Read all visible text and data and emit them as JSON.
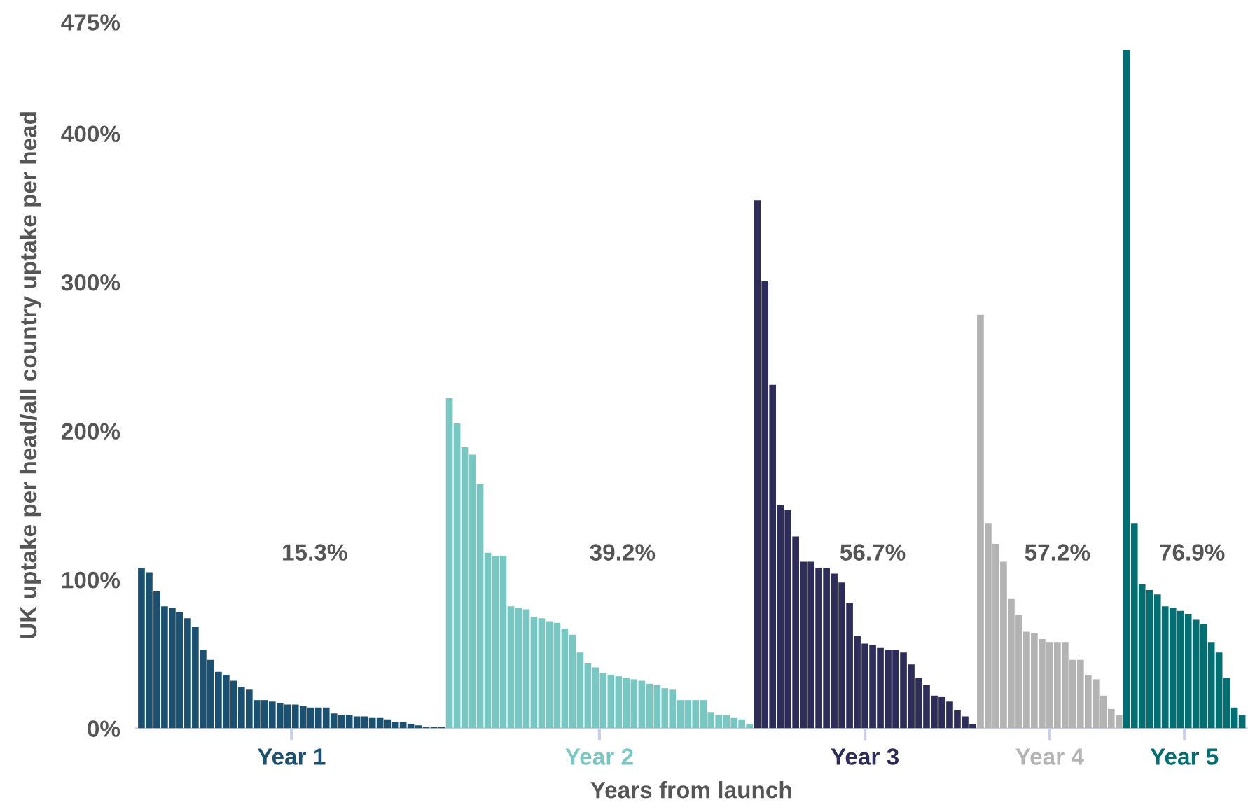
{
  "chart_data": {
    "type": "bar",
    "xlabel": "Years from launch",
    "ylabel": "UK uptake per head/all country uptake per head",
    "categories": [
      null,
      null,
      null,
      null,
      null,
      null,
      null,
      null,
      null,
      null,
      null,
      null,
      null,
      null,
      null,
      null,
      null,
      null,
      null,
      null,
      null,
      null,
      null,
      null,
      null,
      null,
      null,
      null,
      null,
      null,
      null,
      null,
      null,
      null,
      null,
      null,
      null,
      null,
      null,
      null,
      null,
      null,
      null,
      null,
      null,
      null,
      null,
      null,
      null,
      null,
      null,
      null,
      null,
      null,
      null,
      null,
      null,
      null,
      null,
      null,
      null,
      null,
      null,
      null,
      null,
      null,
      null,
      null,
      null,
      null,
      null,
      null,
      null,
      null,
      null,
      null,
      null,
      null,
      null,
      null,
      null,
      null,
      null,
      null,
      null,
      null,
      null,
      null,
      null,
      null,
      null,
      null,
      null,
      null,
      null,
      null,
      null,
      null,
      null,
      null,
      null,
      null,
      null,
      null,
      null,
      null,
      null,
      null,
      null,
      null,
      null,
      null,
      null,
      null,
      null,
      null,
      null,
      null,
      null,
      null,
      null,
      null,
      null,
      null,
      null,
      null,
      null,
      null,
      null,
      null,
      null,
      null,
      null,
      null,
      null,
      null,
      null,
      null,
      null,
      null,
      null,
      null,
      null,
      null
    ],
    "series": [
      {
        "name": "Year 1",
        "color": "#1b5070",
        "values": [
          108,
          105,
          92,
          82,
          81,
          78,
          74,
          68,
          53,
          46,
          38,
          36,
          32,
          28,
          26,
          19,
          19,
          18,
          17,
          16,
          16,
          15,
          14,
          14,
          14,
          10,
          9,
          9,
          8,
          8,
          7,
          7,
          6,
          4,
          4,
          3,
          2,
          1,
          1,
          1,
          null,
          null,
          null,
          null,
          null,
          null,
          null,
          null,
          null,
          null,
          null,
          null,
          null,
          null,
          null,
          null,
          null,
          null,
          null,
          null,
          null,
          null,
          null,
          null,
          null,
          null,
          null,
          null,
          null,
          null,
          null,
          null,
          null,
          null,
          null,
          null,
          null,
          null,
          null,
          null,
          null,
          null,
          null,
          null,
          null,
          null,
          null,
          null,
          null,
          null,
          null,
          null,
          null,
          null,
          null,
          null,
          null,
          null,
          null,
          null,
          null,
          null,
          null,
          null,
          null,
          null,
          null,
          null,
          null,
          null,
          null,
          null,
          null,
          null,
          null,
          null,
          null,
          null,
          null,
          null,
          null,
          null,
          null,
          null,
          null,
          null,
          null,
          null,
          null,
          null,
          null,
          null,
          null,
          null,
          null,
          null,
          null,
          null,
          null,
          null,
          null,
          null,
          null,
          null
        ]
      },
      {
        "name": "Year 2",
        "color": "#79c7c3",
        "values": [
          null,
          null,
          null,
          null,
          null,
          null,
          null,
          null,
          null,
          null,
          null,
          null,
          null,
          null,
          null,
          null,
          null,
          null,
          null,
          null,
          null,
          null,
          null,
          null,
          null,
          null,
          null,
          null,
          null,
          null,
          null,
          null,
          null,
          null,
          null,
          null,
          null,
          null,
          null,
          null,
          222,
          205,
          189,
          184,
          164,
          118,
          116,
          116,
          82,
          81,
          80,
          75,
          74,
          72,
          71,
          67,
          63,
          51,
          44,
          41,
          37,
          36,
          35,
          34,
          33,
          32,
          30,
          29,
          27,
          26,
          19,
          19,
          19,
          19,
          11,
          9,
          9,
          7,
          6,
          3,
          null,
          null,
          null,
          null,
          null,
          null,
          null,
          null,
          null,
          null,
          null,
          null,
          null,
          null,
          null,
          null,
          null,
          null,
          null,
          null,
          null,
          null,
          null,
          null,
          null,
          null,
          null,
          null,
          null,
          null,
          null,
          null,
          null,
          null,
          null,
          null,
          null,
          null,
          null,
          null,
          null,
          null,
          null,
          null,
          null,
          null,
          null,
          null,
          null,
          null,
          null,
          null,
          null,
          null,
          null,
          null,
          null,
          null,
          null,
          null,
          null,
          null,
          null,
          null
        ]
      },
      {
        "name": "Year 3",
        "color": "#2e2d5a",
        "values": [
          null,
          null,
          null,
          null,
          null,
          null,
          null,
          null,
          null,
          null,
          null,
          null,
          null,
          null,
          null,
          null,
          null,
          null,
          null,
          null,
          null,
          null,
          null,
          null,
          null,
          null,
          null,
          null,
          null,
          null,
          null,
          null,
          null,
          null,
          null,
          null,
          null,
          null,
          null,
          null,
          null,
          null,
          null,
          null,
          null,
          null,
          null,
          null,
          null,
          null,
          null,
          null,
          null,
          null,
          null,
          null,
          null,
          null,
          null,
          null,
          null,
          null,
          null,
          null,
          null,
          null,
          null,
          null,
          null,
          null,
          null,
          null,
          null,
          null,
          null,
          null,
          null,
          null,
          null,
          null,
          355,
          301,
          231,
          150,
          147,
          129,
          112,
          112,
          108,
          108,
          104,
          98,
          84,
          62,
          57,
          56,
          54,
          53,
          53,
          51,
          43,
          34,
          29,
          22,
          21,
          18,
          12,
          8,
          3,
          null,
          null,
          null,
          null,
          null,
          null,
          null,
          null,
          null,
          null,
          null,
          null,
          null,
          null,
          null,
          null,
          null,
          null,
          null,
          null,
          null,
          null,
          null,
          null,
          null,
          null,
          null,
          null,
          null,
          null,
          null,
          null,
          null,
          null,
          null
        ]
      },
      {
        "name": "Year 4",
        "color": "#b3b3b3",
        "values": [
          null,
          null,
          null,
          null,
          null,
          null,
          null,
          null,
          null,
          null,
          null,
          null,
          null,
          null,
          null,
          null,
          null,
          null,
          null,
          null,
          null,
          null,
          null,
          null,
          null,
          null,
          null,
          null,
          null,
          null,
          null,
          null,
          null,
          null,
          null,
          null,
          null,
          null,
          null,
          null,
          null,
          null,
          null,
          null,
          null,
          null,
          null,
          null,
          null,
          null,
          null,
          null,
          null,
          null,
          null,
          null,
          null,
          null,
          null,
          null,
          null,
          null,
          null,
          null,
          null,
          null,
          null,
          null,
          null,
          null,
          null,
          null,
          null,
          null,
          null,
          null,
          null,
          null,
          null,
          null,
          null,
          null,
          null,
          null,
          null,
          null,
          null,
          null,
          null,
          null,
          null,
          null,
          null,
          null,
          null,
          null,
          null,
          null,
          null,
          null,
          null,
          null,
          null,
          null,
          null,
          null,
          null,
          null,
          null,
          278,
          138,
          124,
          112,
          87,
          76,
          65,
          64,
          60,
          58,
          58,
          58,
          46,
          46,
          36,
          33,
          22,
          13,
          9,
          null,
          null,
          null,
          null,
          null,
          null,
          null,
          null,
          null,
          null,
          null,
          null,
          null,
          null,
          null,
          null
        ]
      },
      {
        "name": "Year 5",
        "color": "#046f73",
        "values": [
          null,
          null,
          null,
          null,
          null,
          null,
          null,
          null,
          null,
          null,
          null,
          null,
          null,
          null,
          null,
          null,
          null,
          null,
          null,
          null,
          null,
          null,
          null,
          null,
          null,
          null,
          null,
          null,
          null,
          null,
          null,
          null,
          null,
          null,
          null,
          null,
          null,
          null,
          null,
          null,
          null,
          null,
          null,
          null,
          null,
          null,
          null,
          null,
          null,
          null,
          null,
          null,
          null,
          null,
          null,
          null,
          null,
          null,
          null,
          null,
          null,
          null,
          null,
          null,
          null,
          null,
          null,
          null,
          null,
          null,
          null,
          null,
          null,
          null,
          null,
          null,
          null,
          null,
          null,
          null,
          null,
          null,
          null,
          null,
          null,
          null,
          null,
          null,
          null,
          null,
          null,
          null,
          null,
          null,
          null,
          null,
          null,
          null,
          null,
          null,
          null,
          null,
          null,
          null,
          null,
          null,
          null,
          null,
          null,
          null,
          null,
          null,
          null,
          null,
          null,
          null,
          null,
          null,
          null,
          null,
          null,
          null,
          null,
          null,
          null,
          null,
          null,
          null,
          456,
          138,
          97,
          93,
          90,
          82,
          81,
          79,
          77,
          73,
          70,
          58,
          51,
          34,
          14,
          9
        ]
      }
    ],
    "annotations": [
      "15.3%",
      "39.2%",
      "56.7%",
      "57.2%",
      "76.9%"
    ],
    "ylim": [
      0,
      475
    ],
    "yticks": [
      {
        "value": 0,
        "label": "0%"
      },
      {
        "value": 100,
        "label": "100%"
      },
      {
        "value": 200,
        "label": "200%"
      },
      {
        "value": 300,
        "label": "300%"
      },
      {
        "value": 400,
        "label": "400%"
      },
      {
        "value": 475,
        "label": "475%"
      }
    ],
    "grid": false,
    "legend": false
  }
}
